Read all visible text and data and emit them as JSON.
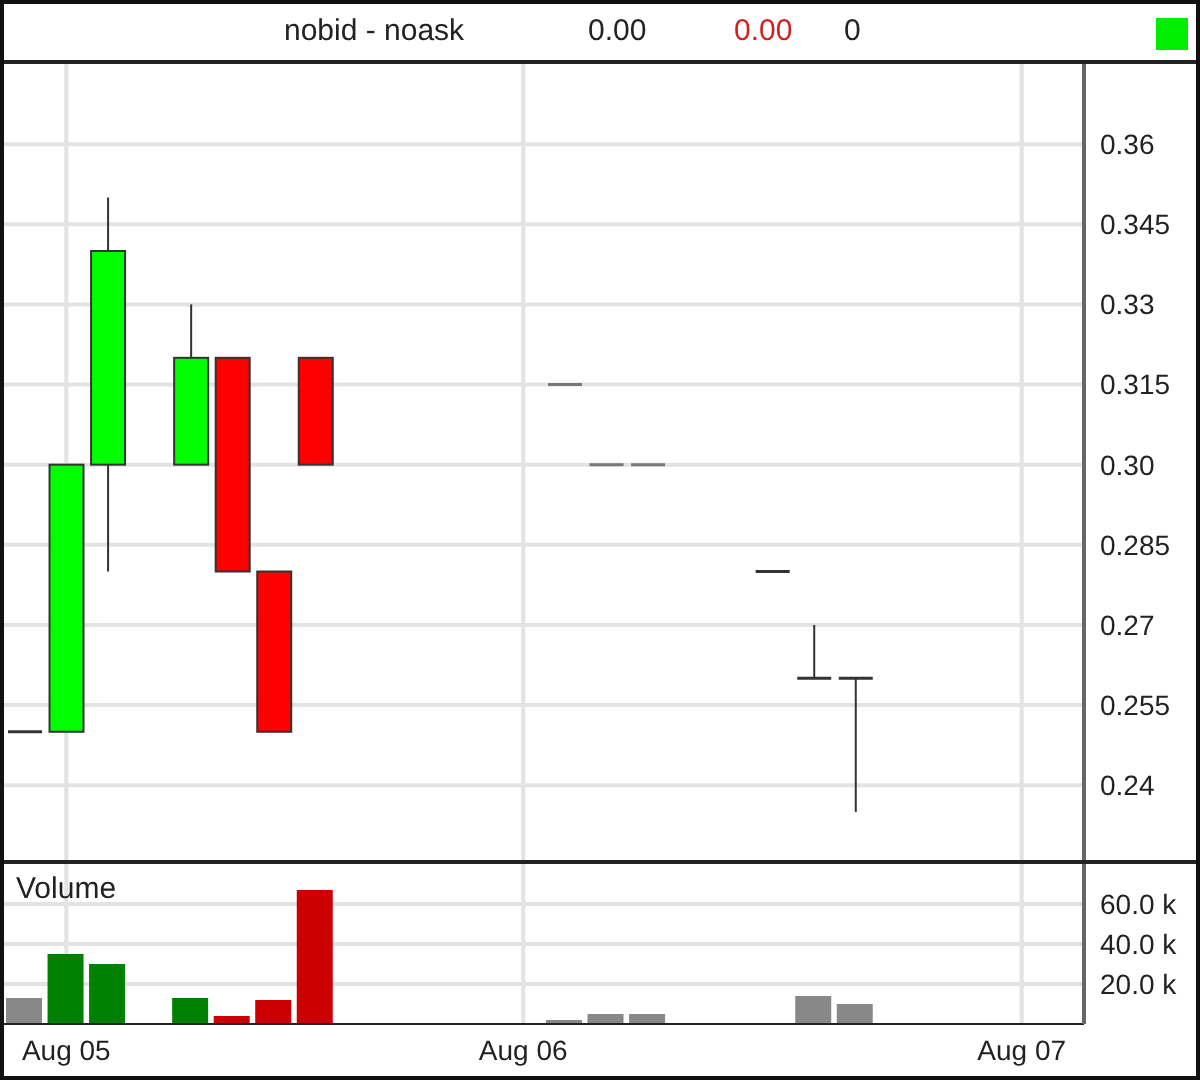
{
  "chart_data": [
    {
      "type": "candlestick",
      "annotations": [
        "nobid - noask",
        "0.00",
        "0.00",
        "0"
      ],
      "ohlc": [
        [
          0.25,
          0.25,
          0.25,
          0.25
        ],
        [
          0.25,
          0.3,
          0.25,
          0.3
        ],
        [
          0.3,
          0.35,
          0.28,
          0.34
        ],
        null,
        [
          0.3,
          0.33,
          0.3,
          0.32
        ],
        [
          0.32,
          0.32,
          0.28,
          0.28
        ],
        [
          0.28,
          0.28,
          0.25,
          0.25
        ],
        [
          0.32,
          0.32,
          0.3,
          0.3
        ],
        null,
        null,
        null,
        null,
        null,
        [
          0.315,
          0.315,
          0.315,
          0.315
        ],
        [
          0.3,
          0.3,
          0.3,
          0.3
        ],
        [
          0.3,
          0.3,
          0.3,
          0.3
        ],
        null,
        null,
        [
          0.28,
          0.28,
          0.28,
          0.28
        ],
        [
          0.26,
          0.27,
          0.26,
          0.26
        ],
        [
          0.26,
          0.26,
          0.235,
          0.26
        ],
        null,
        null,
        null,
        null,
        null
      ],
      "colors": [
        "#333333",
        "#00ff00",
        "#00ff00",
        null,
        "#00ff00",
        "#ff0000",
        "#ff0000",
        "#ff0000",
        null,
        null,
        null,
        null,
        null,
        "#777777",
        "#777777",
        "#777777",
        null,
        null,
        "#333333",
        "#333333",
        "#333333",
        null,
        null,
        null,
        null,
        null
      ],
      "ylim": [
        0.226,
        0.375
      ],
      "yticks": [
        0.24,
        0.255,
        0.27,
        0.285,
        {
          "value": 0.3,
          "label": "0.30"
        },
        0.315,
        0.33,
        0.345,
        0.36
      ],
      "grid": true
    },
    {
      "type": "bar",
      "title": "Volume",
      "categories": [
        null,
        "Aug 05",
        null,
        null,
        null,
        null,
        null,
        null,
        null,
        null,
        null,
        null,
        "Aug 06",
        null,
        null,
        null,
        null,
        null,
        null,
        null,
        null,
        null,
        null,
        null,
        "Aug 07",
        null
      ],
      "values": [
        13000,
        35000,
        30000,
        null,
        13000,
        4000,
        12000,
        67000,
        null,
        null,
        null,
        null,
        null,
        2000,
        5000,
        5000,
        null,
        null,
        null,
        14000,
        10000,
        null,
        null,
        null,
        null,
        null
      ],
      "colors": [
        "#888888",
        "#008000",
        "#008000",
        null,
        "#008000",
        "#cc0000",
        "#cc0000",
        "#cc0000",
        null,
        null,
        null,
        null,
        null,
        "#888888",
        "#888888",
        "#888888",
        null,
        null,
        "#888888",
        "#888888",
        "#888888",
        null,
        null,
        null,
        null,
        null
      ],
      "ylim": [
        0,
        80000
      ],
      "yticks": [
        {
          "value": 20000,
          "label": "20.0 k"
        },
        {
          "value": 40000,
          "label": "40.0 k"
        },
        {
          "value": 60000,
          "label": "60.0 k"
        }
      ],
      "grid": true
    }
  ]
}
